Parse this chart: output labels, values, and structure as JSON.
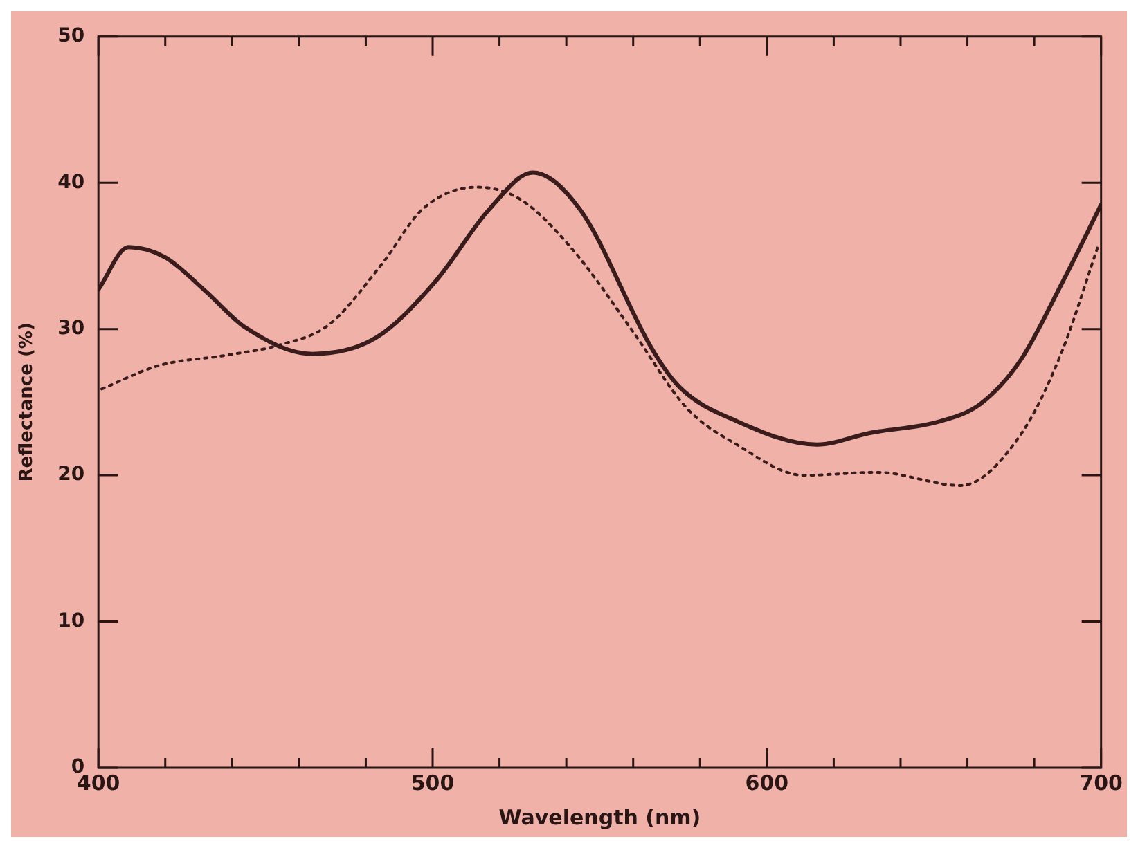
{
  "chart_data": {
    "type": "line",
    "xlabel": "Wavelength (nm)",
    "ylabel": "Reflectance (%)",
    "xlim": [
      400,
      700
    ],
    "xticks": [
      400,
      {
        "value": 420,
        "label": null
      },
      {
        "value": 440,
        "label": null
      },
      {
        "value": 460,
        "label": null
      },
      {
        "value": 480,
        "label": null
      },
      500,
      {
        "value": 520,
        "label": null
      },
      {
        "value": 540,
        "label": null
      },
      {
        "value": 560,
        "label": null
      },
      {
        "value": 580,
        "label": null
      },
      600,
      {
        "value": 620,
        "label": null
      },
      {
        "value": 640,
        "label": null
      },
      {
        "value": 660,
        "label": null
      },
      {
        "value": 680,
        "label": null
      },
      700
    ],
    "ylim": [
      0,
      50
    ],
    "yticks": [
      0,
      10,
      20,
      30,
      40,
      50
    ],
    "grid": false,
    "legend": false,
    "marker": "none",
    "series": [
      {
        "color": "#3a1c1c",
        "line_style": "solid",
        "x": [
          400,
          409,
          420,
          432,
          444,
          464,
          483,
          501,
          517,
          530,
          544,
          566,
          574,
          591,
          615,
          631,
          652,
          664,
          676,
          688,
          700
        ],
        "values": [
          32.7,
          35.6,
          34.9,
          32.6,
          30.1,
          28.3,
          29.4,
          33.3,
          38.2,
          40.7,
          38.2,
          28.5,
          26.0,
          23.7,
          22.1,
          22.9,
          23.7,
          24.9,
          27.9,
          33.0,
          38.5
        ]
      },
      {
        "color": "#3a1c1c",
        "line_style": "dotted",
        "x": [
          401,
          418,
          438,
          454,
          469,
          485,
          497,
          513,
          526,
          542,
          560,
          576,
          591,
          611,
          633,
          658,
          676,
          688,
          699
        ],
        "values": [
          25.9,
          27.5,
          28.2,
          28.9,
          30.3,
          34.5,
          38.2,
          39.7,
          38.9,
          35.4,
          29.8,
          24.6,
          22.1,
          20.0,
          20.2,
          19.3,
          22.8,
          28.3,
          35.6
        ]
      }
    ]
  }
}
